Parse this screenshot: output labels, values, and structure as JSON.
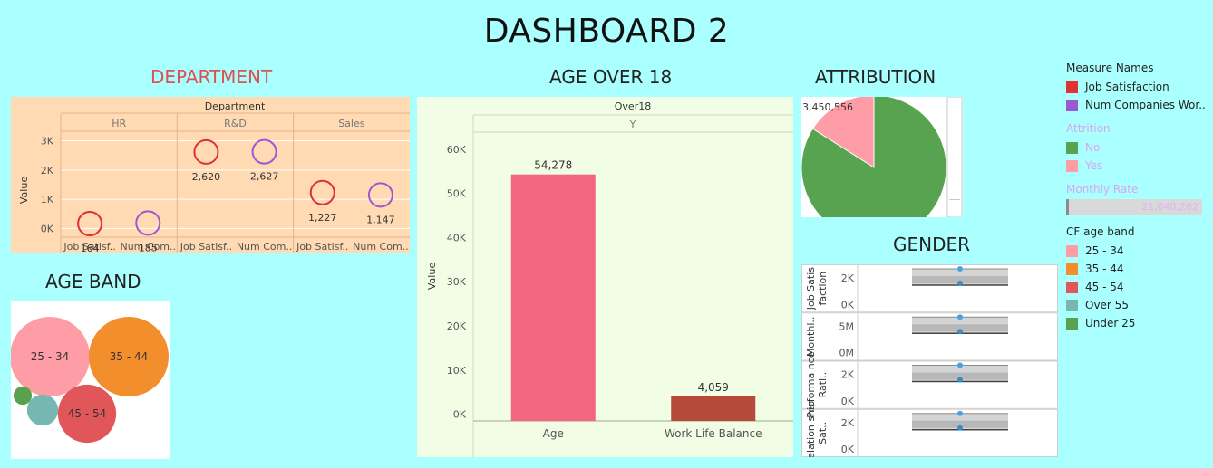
{
  "header": {
    "title": "DASHBOARD 2"
  },
  "sections": {
    "department": "DEPARTMENT",
    "age_over_18": "AGE OVER 18",
    "attribution": "ATTRIBUTION",
    "age_band": "AGE BAND",
    "gender": "GENDER"
  },
  "colors": {
    "job_satisfaction": "#e03131",
    "num_companies": "#9b59d0",
    "age_bar": "#f4667e",
    "wlb_bar": "#b5493a",
    "attrition_no": "#57a350",
    "attrition_yes": "#ff9da7",
    "band_25_34": "#ff9da7",
    "band_35_44": "#f28e2b",
    "band_45_54": "#e15759",
    "band_over_55": "#76b7b2",
    "band_under_25": "#59a14f"
  },
  "legend": {
    "measure_names": {
      "title": "Measure Names",
      "items": [
        "Job Satisfaction",
        "Num Companies Wor.."
      ]
    },
    "attrition": {
      "title": "Attrition",
      "items": [
        "No",
        "Yes"
      ]
    },
    "monthly_rate": {
      "title": "Monthly Rate",
      "value": "21,040,262"
    },
    "age_band": {
      "title": "CF age band",
      "items": [
        "25 - 34",
        "35 - 44",
        "45 - 54",
        "Over 55",
        "Under 25"
      ]
    }
  },
  "chart_data": [
    {
      "id": "department",
      "type": "scatter",
      "title": "Department",
      "ylabel": "Value",
      "groups": [
        "HR",
        "R&D",
        "Sales"
      ],
      "categories": [
        "Job Satisf..",
        "Num Com.."
      ],
      "yticks": [
        "3K",
        "2K",
        "1K",
        "0K"
      ],
      "ylim": [
        -300,
        3300
      ],
      "series": [
        {
          "name": "Job Satisfaction",
          "values": [
            164,
            2620,
            1227
          ],
          "labels": [
            "164",
            "2,620",
            "1,227"
          ]
        },
        {
          "name": "Num Companies Wor..",
          "values": [
            185,
            2627,
            1147
          ],
          "labels": [
            "185",
            "2,627",
            "1,147"
          ]
        }
      ]
    },
    {
      "id": "age_over_18",
      "type": "bar",
      "title": "Over18",
      "group": "Y",
      "ylabel": "Value",
      "categories": [
        "Age",
        "Work Life Balance"
      ],
      "values": [
        54278,
        4059
      ],
      "labels": [
        "54,278",
        "4,059"
      ],
      "yticks": [
        "60K",
        "50K",
        "40K",
        "30K",
        "20K",
        "10K",
        "0K"
      ],
      "ylim": [
        -1500,
        62000
      ]
    },
    {
      "id": "attribution",
      "type": "pie",
      "categories": [
        "No",
        "Yes"
      ],
      "values": [
        0.84,
        0.16
      ],
      "label": "3,450,556"
    },
    {
      "id": "age_band",
      "type": "bubble",
      "categories": [
        "25 - 34",
        "35 - 44",
        "45 - 54",
        "Over 55",
        "Under 25"
      ],
      "relative_size": [
        1.0,
        1.0,
        0.73,
        0.39,
        0.23
      ]
    },
    {
      "id": "gender",
      "type": "box",
      "rows": [
        {
          "label": "Job Satis faction",
          "yticks": [
            "2K",
            "0K"
          ]
        },
        {
          "label": "Monthl..",
          "yticks": [
            "5M",
            "0M"
          ]
        },
        {
          "label": "Performa nce Rati..",
          "yticks": [
            "2K",
            "0K"
          ]
        },
        {
          "label": "Relation ship Sat..",
          "yticks": [
            "2K",
            "0K"
          ]
        }
      ]
    }
  ]
}
